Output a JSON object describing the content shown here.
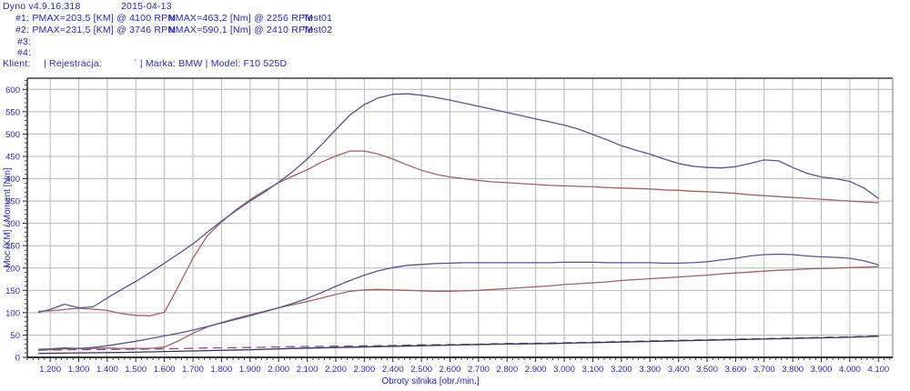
{
  "header": {
    "app_version": "Dyno v4.9.16.318",
    "date": "2015-04-13",
    "tests": [
      {
        "label": "#1: PMAX=203,5 [KM] @ 4100 RPM",
        "nmax": "NMAX=463,2 [Nm] @ 2256 RPM",
        "test": "Test01"
      },
      {
        "label": "#2: PMAX=231,5 [KM] @ 3746 RPM",
        "nmax": "NMAX=590,1 [Nm] @ 2410 RPM",
        "test": "Test02"
      },
      {
        "label": "#3:",
        "nmax": "",
        "test": ""
      },
      {
        "label": "#4:",
        "nmax": "",
        "test": ""
      }
    ],
    "client": {
      "klient": "Klient:",
      "rejestracja": "| Rejestracja:",
      "marka_model": "` | Marka: BMW | Model: F10 525D"
    }
  },
  "chart_data": {
    "type": "line",
    "xlabel": "Obroty silnika [obr./min.]",
    "ylabel": "Moc [KM] / Moment [Nm]",
    "xlim": [
      1120,
      4150
    ],
    "ylim": [
      0,
      625
    ],
    "grid": true,
    "legend": "none",
    "x_ticks": [
      1200,
      1300,
      1400,
      1500,
      1600,
      1700,
      1800,
      1900,
      2000,
      2100,
      2200,
      2300,
      2400,
      2500,
      2600,
      2700,
      2800,
      2900,
      3000,
      3100,
      3200,
      3300,
      3400,
      3500,
      3600,
      3700,
      3800,
      3900,
      4000,
      4100
    ],
    "x_tick_labels": [
      "1.200",
      "1.300",
      "1.400",
      "1.500",
      "1.600",
      "1.700",
      "1.800",
      "1.900",
      "2.000",
      "2.100",
      "2.200",
      "2.300",
      "2.400",
      "2.500",
      "2.600",
      "2.700",
      "2.800",
      "2.900",
      "3.000",
      "3.100",
      "3.200",
      "3.300",
      "3.400",
      "3.500",
      "3.600",
      "3.700",
      "3.800",
      "3.900",
      "4.000",
      "4.100"
    ],
    "y_ticks": [
      0,
      50,
      100,
      150,
      200,
      250,
      300,
      350,
      400,
      450,
      500,
      550,
      600
    ],
    "x_minor_step": 20,
    "y_minor_step": 10,
    "colors": {
      "test02_blue": "#56568e",
      "test01_red": "#a46262",
      "aux_magenta": "#8f4a8f",
      "aux_navy": "#32325a",
      "grid": "#b7b7b7",
      "axis_text": "#2b2ba8",
      "border_dark": "#3c3c3c",
      "border_light": "#9a9a9a",
      "baseline": "#1a1a1a"
    },
    "series": [
      {
        "name": "moment-test01",
        "color": "#a46262",
        "dash": null,
        "points": [
          [
            1160,
            103
          ],
          [
            1200,
            104
          ],
          [
            1250,
            107
          ],
          [
            1300,
            110
          ],
          [
            1350,
            108
          ],
          [
            1400,
            105
          ],
          [
            1450,
            98
          ],
          [
            1500,
            94
          ],
          [
            1550,
            93
          ],
          [
            1600,
            101
          ],
          [
            1650,
            160
          ],
          [
            1700,
            222
          ],
          [
            1750,
            272
          ],
          [
            1800,
            303
          ],
          [
            1850,
            330
          ],
          [
            1900,
            353
          ],
          [
            1950,
            373
          ],
          [
            2000,
            391
          ],
          [
            2050,
            406
          ],
          [
            2100,
            420
          ],
          [
            2150,
            437
          ],
          [
            2200,
            451
          ],
          [
            2250,
            462
          ],
          [
            2300,
            462
          ],
          [
            2350,
            455
          ],
          [
            2400,
            444
          ],
          [
            2450,
            431
          ],
          [
            2500,
            419
          ],
          [
            2550,
            410
          ],
          [
            2600,
            404
          ],
          [
            2650,
            400
          ],
          [
            2700,
            396
          ],
          [
            2750,
            393
          ],
          [
            2800,
            391
          ],
          [
            2850,
            389
          ],
          [
            2900,
            387
          ],
          [
            2950,
            385
          ],
          [
            3000,
            384
          ],
          [
            3050,
            383
          ],
          [
            3100,
            382
          ],
          [
            3150,
            380
          ],
          [
            3200,
            379
          ],
          [
            3250,
            378
          ],
          [
            3300,
            377
          ],
          [
            3350,
            375
          ],
          [
            3400,
            374
          ],
          [
            3450,
            372
          ],
          [
            3500,
            371
          ],
          [
            3550,
            369
          ],
          [
            3600,
            367
          ],
          [
            3650,
            364
          ],
          [
            3700,
            362
          ],
          [
            3750,
            360
          ],
          [
            3800,
            358
          ],
          [
            3850,
            356
          ],
          [
            3900,
            354
          ],
          [
            3950,
            352
          ],
          [
            4000,
            350
          ],
          [
            4050,
            348
          ],
          [
            4100,
            346
          ]
        ]
      },
      {
        "name": "moment-test02",
        "color": "#56568e",
        "dash": null,
        "points": [
          [
            1160,
            101
          ],
          [
            1200,
            107
          ],
          [
            1250,
            119
          ],
          [
            1300,
            111
          ],
          [
            1350,
            113
          ],
          [
            1400,
            133
          ],
          [
            1450,
            152
          ],
          [
            1500,
            170
          ],
          [
            1550,
            190
          ],
          [
            1600,
            211
          ],
          [
            1650,
            232
          ],
          [
            1700,
            254
          ],
          [
            1750,
            280
          ],
          [
            1800,
            305
          ],
          [
            1850,
            328
          ],
          [
            1900,
            350
          ],
          [
            1950,
            370
          ],
          [
            2000,
            392
          ],
          [
            2050,
            416
          ],
          [
            2100,
            444
          ],
          [
            2150,
            476
          ],
          [
            2200,
            510
          ],
          [
            2250,
            543
          ],
          [
            2300,
            566
          ],
          [
            2350,
            581
          ],
          [
            2400,
            589
          ],
          [
            2450,
            590
          ],
          [
            2500,
            587
          ],
          [
            2550,
            582
          ],
          [
            2600,
            576
          ],
          [
            2650,
            569
          ],
          [
            2700,
            562
          ],
          [
            2750,
            555
          ],
          [
            2800,
            548
          ],
          [
            2850,
            541
          ],
          [
            2900,
            534
          ],
          [
            2950,
            527
          ],
          [
            3000,
            520
          ],
          [
            3050,
            511
          ],
          [
            3100,
            499
          ],
          [
            3150,
            487
          ],
          [
            3200,
            474
          ],
          [
            3250,
            464
          ],
          [
            3300,
            455
          ],
          [
            3350,
            444
          ],
          [
            3400,
            434
          ],
          [
            3450,
            428
          ],
          [
            3500,
            425
          ],
          [
            3550,
            424
          ],
          [
            3600,
            427
          ],
          [
            3650,
            434
          ],
          [
            3700,
            442
          ],
          [
            3750,
            440
          ],
          [
            3800,
            425
          ],
          [
            3850,
            412
          ],
          [
            3900,
            404
          ],
          [
            3950,
            400
          ],
          [
            4000,
            394
          ],
          [
            4050,
            379
          ],
          [
            4100,
            356
          ]
        ]
      },
      {
        "name": "moc-test01",
        "color": "#a46262",
        "dash": null,
        "points": [
          [
            1160,
            17
          ],
          [
            1200,
            17
          ],
          [
            1250,
            19
          ],
          [
            1300,
            20
          ],
          [
            1350,
            20
          ],
          [
            1400,
            21
          ],
          [
            1450,
            20
          ],
          [
            1500,
            20
          ],
          [
            1550,
            20
          ],
          [
            1600,
            23
          ],
          [
            1650,
            37
          ],
          [
            1700,
            54
          ],
          [
            1750,
            68
          ],
          [
            1800,
            78
          ],
          [
            1850,
            87
          ],
          [
            1900,
            95
          ],
          [
            1950,
            103
          ],
          [
            2000,
            111
          ],
          [
            2050,
            118
          ],
          [
            2100,
            125
          ],
          [
            2150,
            133
          ],
          [
            2200,
            141
          ],
          [
            2250,
            148
          ],
          [
            2300,
            151
          ],
          [
            2350,
            152
          ],
          [
            2400,
            151
          ],
          [
            2450,
            150
          ],
          [
            2500,
            149
          ],
          [
            2550,
            148
          ],
          [
            2600,
            148
          ],
          [
            2650,
            149
          ],
          [
            2700,
            150
          ],
          [
            2750,
            152
          ],
          [
            2800,
            154
          ],
          [
            2850,
            156
          ],
          [
            2900,
            158
          ],
          [
            2950,
            160
          ],
          [
            3000,
            163
          ],
          [
            3050,
            165
          ],
          [
            3100,
            167
          ],
          [
            3150,
            169
          ],
          [
            3200,
            172
          ],
          [
            3250,
            174
          ],
          [
            3300,
            176
          ],
          [
            3350,
            178
          ],
          [
            3400,
            180
          ],
          [
            3450,
            182
          ],
          [
            3500,
            184
          ],
          [
            3550,
            187
          ],
          [
            3600,
            189
          ],
          [
            3650,
            191
          ],
          [
            3700,
            193
          ],
          [
            3750,
            195
          ],
          [
            3800,
            196
          ],
          [
            3850,
            198
          ],
          [
            3900,
            199
          ],
          [
            3950,
            200
          ],
          [
            4000,
            201
          ],
          [
            4050,
            202
          ],
          [
            4100,
            203
          ]
        ]
      },
      {
        "name": "moc-test02",
        "color": "#56568e",
        "dash": null,
        "points": [
          [
            1160,
            18
          ],
          [
            1200,
            19
          ],
          [
            1250,
            21
          ],
          [
            1300,
            20
          ],
          [
            1350,
            22
          ],
          [
            1400,
            26
          ],
          [
            1450,
            31
          ],
          [
            1500,
            36
          ],
          [
            1550,
            42
          ],
          [
            1600,
            48
          ],
          [
            1650,
            54
          ],
          [
            1700,
            61
          ],
          [
            1750,
            69
          ],
          [
            1800,
            77
          ],
          [
            1850,
            85
          ],
          [
            1900,
            93
          ],
          [
            1950,
            102
          ],
          [
            2000,
            111
          ],
          [
            2050,
            121
          ],
          [
            2100,
            132
          ],
          [
            2150,
            145
          ],
          [
            2200,
            159
          ],
          [
            2250,
            172
          ],
          [
            2300,
            184
          ],
          [
            2350,
            194
          ],
          [
            2400,
            201
          ],
          [
            2450,
            206
          ],
          [
            2500,
            208
          ],
          [
            2550,
            210
          ],
          [
            2600,
            211
          ],
          [
            2650,
            212
          ],
          [
            2700,
            212
          ],
          [
            2750,
            212
          ],
          [
            2800,
            212
          ],
          [
            2850,
            212
          ],
          [
            2900,
            212
          ],
          [
            2950,
            212
          ],
          [
            3000,
            213
          ],
          [
            3050,
            213
          ],
          [
            3100,
            213
          ],
          [
            3150,
            212
          ],
          [
            3200,
            212
          ],
          [
            3250,
            212
          ],
          [
            3300,
            212
          ],
          [
            3350,
            211
          ],
          [
            3400,
            211
          ],
          [
            3450,
            212
          ],
          [
            3500,
            214
          ],
          [
            3550,
            218
          ],
          [
            3600,
            222
          ],
          [
            3650,
            227
          ],
          [
            3700,
            230
          ],
          [
            3750,
            231
          ],
          [
            3800,
            230
          ],
          [
            3850,
            227
          ],
          [
            3900,
            225
          ],
          [
            3950,
            224
          ],
          [
            4000,
            222
          ],
          [
            4050,
            216
          ],
          [
            4100,
            207
          ]
        ]
      },
      {
        "name": "aux-dashed",
        "color": "#8f4a8f",
        "dash": "9 7",
        "points": [
          [
            1160,
            16
          ],
          [
            1300,
            17
          ],
          [
            1450,
            18
          ],
          [
            1600,
            19
          ],
          [
            1750,
            21
          ],
          [
            1900,
            22
          ],
          [
            2050,
            24
          ],
          [
            2200,
            25
          ],
          [
            2350,
            26
          ],
          [
            2500,
            28
          ],
          [
            2650,
            29
          ],
          [
            2800,
            31
          ],
          [
            2950,
            32
          ],
          [
            3100,
            34
          ],
          [
            3250,
            36
          ],
          [
            3400,
            38
          ],
          [
            3550,
            40
          ],
          [
            3700,
            42
          ],
          [
            3850,
            44
          ],
          [
            4000,
            46
          ],
          [
            4100,
            48
          ]
        ]
      },
      {
        "name": "aux-solid",
        "color": "#32325a",
        "dash": null,
        "points": [
          [
            1160,
            9
          ],
          [
            1300,
            10
          ],
          [
            1450,
            11
          ],
          [
            1600,
            13
          ],
          [
            1750,
            15
          ],
          [
            1900,
            17
          ],
          [
            2050,
            20
          ],
          [
            2200,
            22
          ],
          [
            2350,
            24
          ],
          [
            2500,
            26
          ],
          [
            2650,
            28
          ],
          [
            2800,
            30
          ],
          [
            2950,
            31
          ],
          [
            3100,
            33
          ],
          [
            3250,
            35
          ],
          [
            3400,
            37
          ],
          [
            3550,
            39
          ],
          [
            3700,
            41
          ],
          [
            3850,
            43
          ],
          [
            4000,
            45
          ],
          [
            4100,
            47
          ]
        ]
      }
    ]
  }
}
